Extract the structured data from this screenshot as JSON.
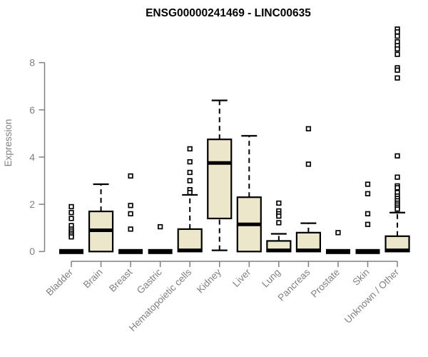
{
  "chart_data": {
    "type": "boxplot",
    "title": "ENSG00000241469 - LINC00635",
    "ylabel": "Expression",
    "xlabel": "",
    "yticks": [
      0,
      2,
      4,
      6,
      8
    ],
    "ylim": [
      0,
      9.6
    ],
    "grid": false,
    "legend": "none",
    "colors": {
      "box_fill": "#ECE6CB",
      "box_stroke": "#000000",
      "median": "#000000",
      "whisker": "#000000",
      "outlier_stroke": "#000000",
      "outlier_fill": "#FFFFFF",
      "axis": "#808080",
      "title": "#000000",
      "background": "#FFFFFF"
    },
    "categories": [
      "Bladder",
      "Brain",
      "Breast",
      "Gastric",
      "Hematopoietic cells",
      "Kidney",
      "Liver",
      "Lung",
      "Pancreas",
      "Prostate",
      "Skin",
      "Unknown / Other"
    ],
    "series": [
      {
        "category": "Bladder",
        "low": 0,
        "q1": 0,
        "median": 0,
        "q3": 0,
        "high": 0,
        "outliers": [
          1.9,
          1.65,
          1.4,
          1.1,
          0.95,
          0.87,
          0.78,
          0.7,
          0.62
        ]
      },
      {
        "category": "Brain",
        "low": 0,
        "q1": 0,
        "median": 0.9,
        "q3": 1.7,
        "high": 2.85,
        "outliers": []
      },
      {
        "category": "Breast",
        "low": 0,
        "q1": 0,
        "median": 0,
        "q3": 0,
        "high": 0,
        "outliers": [
          3.2,
          1.95,
          1.6,
          0.95
        ]
      },
      {
        "category": "Gastric",
        "low": 0,
        "q1": 0,
        "median": 0,
        "q3": 0,
        "high": 0,
        "outliers": [
          1.05
        ]
      },
      {
        "category": "Hematopoietic cells",
        "low": 0,
        "q1": 0,
        "median": 0.05,
        "q3": 0.95,
        "high": 2.4,
        "outliers": [
          4.35,
          3.8,
          3.35,
          3.0,
          2.62,
          2.5
        ]
      },
      {
        "category": "Kidney",
        "low": 0.05,
        "q1": 1.4,
        "median": 3.75,
        "q3": 4.75,
        "high": 6.4,
        "outliers": []
      },
      {
        "category": "Liver",
        "low": 0,
        "q1": 0,
        "median": 1.15,
        "q3": 2.3,
        "high": 4.9,
        "outliers": []
      },
      {
        "category": "Lung",
        "low": 0,
        "q1": 0,
        "median": 0.05,
        "q3": 0.45,
        "high": 0.75,
        "outliers": [
          2.05,
          1.72,
          1.6,
          1.5,
          1.22
        ]
      },
      {
        "category": "Pancreas",
        "low": 0,
        "q1": 0,
        "median": 0.05,
        "q3": 0.8,
        "high": 1.2,
        "outliers": [
          5.2,
          3.7
        ]
      },
      {
        "category": "Prostate",
        "low": 0,
        "q1": 0,
        "median": 0,
        "q3": 0,
        "high": 0,
        "outliers": [
          0.8
        ]
      },
      {
        "category": "Skin",
        "low": 0,
        "q1": 0,
        "median": 0,
        "q3": 0,
        "high": 0,
        "outliers": [
          2.85,
          2.45,
          1.6,
          1.15
        ]
      },
      {
        "category": "Unknown / Other",
        "low": 0,
        "q1": 0,
        "median": 0.05,
        "q3": 0.65,
        "high": 1.65,
        "outliers": [
          9.42,
          9.3,
          9.12,
          8.88,
          8.72,
          8.58,
          8.35,
          7.78,
          7.68,
          7.35,
          4.05,
          3.15,
          2.78,
          2.7,
          2.5,
          2.35,
          2.25,
          2.15,
          2.05,
          1.97,
          1.88,
          1.8
        ]
      }
    ]
  }
}
